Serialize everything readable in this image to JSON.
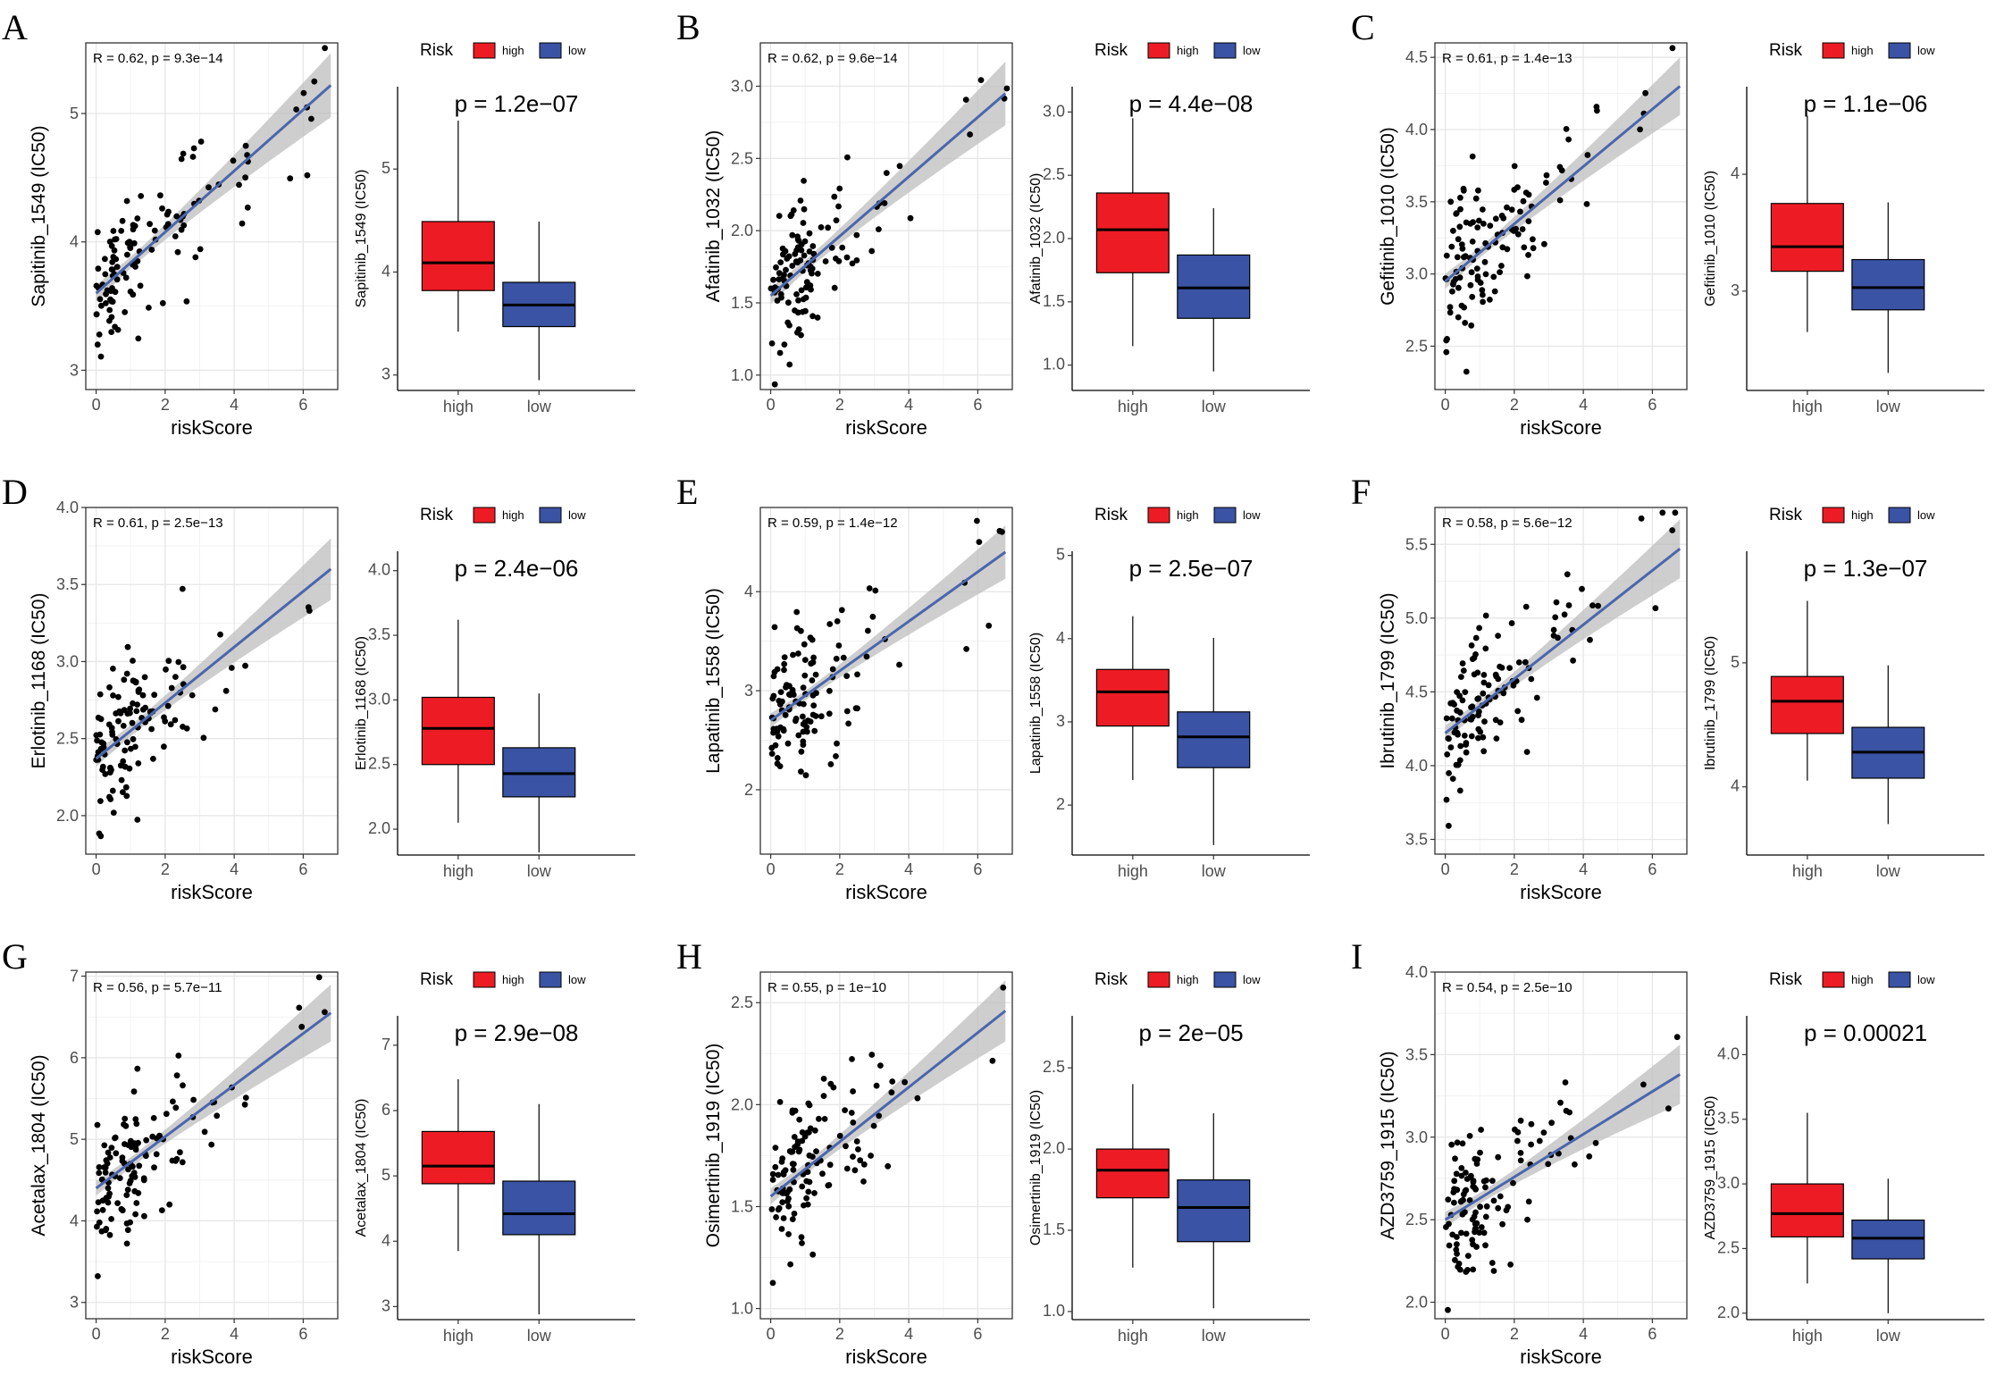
{
  "colors": {
    "high": "#ED1C24",
    "low": "#3A53A4",
    "regression_line": "#4A66AC",
    "confidence_band": "#BEBEBE",
    "points": "#000000"
  },
  "chart_data": [
    {
      "panel": "A",
      "type": "scatter+box",
      "scatter": {
        "xlabel": "riskScore",
        "ylabel": "Sapitinib_1549 (IC50)",
        "stat_label": "R = 0.62, p = 9.3e−14",
        "xlim": [
          -0.3,
          7
        ],
        "ylim": [
          2.85,
          5.55
        ],
        "xticks": [
          0,
          2,
          4,
          6
        ],
        "yticks": [
          3,
          4,
          5
        ],
        "fit": {
          "x0": 0,
          "y0": 3.6,
          "x1": 6.8,
          "y1": 5.22
        },
        "band": 0.25
      },
      "box": {
        "ylabel": "Sapitinib_1549 (IC50)",
        "pvalue_label": "p = 1.2e−07",
        "categories": [
          "high",
          "low"
        ],
        "legend_title": "Risk",
        "ylim": [
          2.85,
          5.8
        ],
        "yticks": [
          3,
          4,
          5
        ],
        "boxes": [
          {
            "group": "high",
            "min": 3.42,
            "q1": 3.82,
            "median": 4.09,
            "q3": 4.49,
            "max": 5.47
          },
          {
            "group": "low",
            "min": 2.95,
            "q1": 3.47,
            "median": 3.68,
            "q3": 3.9,
            "max": 4.49
          }
        ]
      }
    },
    {
      "panel": "B",
      "type": "scatter+box",
      "scatter": {
        "xlabel": "riskScore",
        "ylabel": "Afatinib_1032 (IC50)",
        "stat_label": "R = 0.62, p = 9.6e−14",
        "xlim": [
          -0.3,
          7
        ],
        "ylim": [
          0.9,
          3.3
        ],
        "xticks": [
          0,
          2,
          4,
          6
        ],
        "yticks": [
          1.0,
          1.5,
          2.0,
          2.5,
          3.0
        ],
        "fit": {
          "x0": 0,
          "y0": 1.55,
          "x1": 6.8,
          "y1": 2.95
        },
        "band": 0.22
      },
      "box": {
        "ylabel": "Afatinib_1032 (IC50)",
        "pvalue_label": "p = 4.4e−08",
        "categories": [
          "high",
          "low"
        ],
        "legend_title": "Risk",
        "ylim": [
          0.8,
          3.2
        ],
        "yticks": [
          1.0,
          1.5,
          2.0,
          2.5,
          3.0
        ],
        "boxes": [
          {
            "group": "high",
            "min": 1.15,
            "q1": 1.73,
            "median": 2.07,
            "q3": 2.36,
            "max": 2.95
          },
          {
            "group": "low",
            "min": 0.95,
            "q1": 1.37,
            "median": 1.61,
            "q3": 1.87,
            "max": 2.24
          }
        ]
      }
    },
    {
      "panel": "C",
      "type": "scatter+box",
      "scatter": {
        "xlabel": "riskScore",
        "ylabel": "Gefitinib_1010 (IC50)",
        "stat_label": "R = 0.61, p = 1.4e−13",
        "xlim": [
          -0.3,
          7
        ],
        "ylim": [
          2.2,
          4.6
        ],
        "xticks": [
          0,
          2,
          4,
          6
        ],
        "yticks": [
          2.5,
          3.0,
          3.5,
          4.0,
          4.5
        ],
        "fit": {
          "x0": 0,
          "y0": 2.95,
          "x1": 6.8,
          "y1": 4.3
        },
        "band": 0.2
      },
      "box": {
        "ylabel": "Gefitinib_1010 (IC50)",
        "pvalue_label": "p = 1.1e−06",
        "categories": [
          "high",
          "low"
        ],
        "legend_title": "Risk",
        "ylim": [
          2.15,
          4.75
        ],
        "yticks": [
          3,
          4
        ],
        "boxes": [
          {
            "group": "high",
            "min": 2.65,
            "q1": 3.17,
            "median": 3.38,
            "q3": 3.75,
            "max": 4.5
          },
          {
            "group": "low",
            "min": 2.3,
            "q1": 2.84,
            "median": 3.03,
            "q3": 3.27,
            "max": 3.76
          }
        ]
      }
    },
    {
      "panel": "D",
      "type": "scatter+box",
      "scatter": {
        "xlabel": "riskScore",
        "ylabel": "Erlotinib_1168 (IC50)",
        "stat_label": "R = 0.61, p = 2.5e−13",
        "xlim": [
          -0.3,
          7
        ],
        "ylim": [
          1.75,
          4.0
        ],
        "xticks": [
          0,
          2,
          4,
          6
        ],
        "yticks": [
          2.0,
          2.5,
          3.0,
          3.5,
          4.0
        ],
        "fit": {
          "x0": 0,
          "y0": 2.37,
          "x1": 6.8,
          "y1": 3.6
        },
        "band": 0.2
      },
      "box": {
        "ylabel": "Erlotinib_1168 (IC50)",
        "pvalue_label": "p = 2.4e−06",
        "categories": [
          "high",
          "low"
        ],
        "legend_title": "Risk",
        "ylim": [
          1.8,
          4.15
        ],
        "yticks": [
          2.0,
          2.5,
          3.0,
          3.5,
          4.0
        ],
        "boxes": [
          {
            "group": "high",
            "min": 2.05,
            "q1": 2.5,
            "median": 2.78,
            "q3": 3.02,
            "max": 3.62
          },
          {
            "group": "low",
            "min": 1.82,
            "q1": 2.25,
            "median": 2.43,
            "q3": 2.63,
            "max": 3.05
          }
        ]
      }
    },
    {
      "panel": "E",
      "type": "scatter+box",
      "scatter": {
        "xlabel": "riskScore",
        "ylabel": "Lapatinib_1558 (IC50)",
        "stat_label": "R = 0.59, p = 1.4e−12",
        "xlim": [
          -0.3,
          7
        ],
        "ylim": [
          1.35,
          4.85
        ],
        "xticks": [
          0,
          2,
          4,
          6
        ],
        "yticks": [
          2,
          3,
          4
        ],
        "fit": {
          "x0": 0,
          "y0": 2.7,
          "x1": 6.8,
          "y1": 4.4
        },
        "band": 0.27
      },
      "box": {
        "ylabel": "Lapatinib_1558 (IC50)",
        "pvalue_label": "p = 2.5e−07",
        "categories": [
          "high",
          "low"
        ],
        "legend_title": "Risk",
        "ylim": [
          1.4,
          5.05
        ],
        "yticks": [
          2,
          3,
          4,
          5
        ],
        "boxes": [
          {
            "group": "high",
            "min": 2.3,
            "q1": 2.95,
            "median": 3.36,
            "q3": 3.63,
            "max": 4.27
          },
          {
            "group": "low",
            "min": 1.52,
            "q1": 2.45,
            "median": 2.82,
            "q3": 3.12,
            "max": 4.01
          }
        ]
      }
    },
    {
      "panel": "F",
      "type": "scatter+box",
      "scatter": {
        "xlabel": "riskScore",
        "ylabel": "Ibrutinib_1799 (IC50)",
        "stat_label": "R = 0.58, p = 5.6e−12",
        "xlim": [
          -0.3,
          7
        ],
        "ylim": [
          3.4,
          5.75
        ],
        "xticks": [
          0,
          2,
          4,
          6
        ],
        "yticks": [
          3.5,
          4.0,
          4.5,
          5.0,
          5.5
        ],
        "fit": {
          "x0": 0,
          "y0": 4.22,
          "x1": 6.8,
          "y1": 5.47
        },
        "band": 0.2
      },
      "box": {
        "ylabel": "Ibrutinib_1799 (IC50)",
        "pvalue_label": "p = 1.3e−07",
        "categories": [
          "high",
          "low"
        ],
        "legend_title": "Risk",
        "ylim": [
          3.45,
          5.9
        ],
        "yticks": [
          4,
          5
        ],
        "boxes": [
          {
            "group": "high",
            "min": 4.05,
            "q1": 4.43,
            "median": 4.69,
            "q3": 4.89,
            "max": 5.5
          },
          {
            "group": "low",
            "min": 3.7,
            "q1": 4.07,
            "median": 4.28,
            "q3": 4.48,
            "max": 4.98
          }
        ]
      }
    },
    {
      "panel": "G",
      "type": "scatter+box",
      "scatter": {
        "xlabel": "riskScore",
        "ylabel": "Acetalax_1804 (IC50)",
        "stat_label": "R = 0.56, p = 5.7e−11",
        "xlim": [
          -0.3,
          7
        ],
        "ylim": [
          2.8,
          7.05
        ],
        "xticks": [
          0,
          2,
          4,
          6
        ],
        "yticks": [
          3,
          4,
          5,
          6,
          7
        ],
        "fit": {
          "x0": 0,
          "y0": 4.4,
          "x1": 6.8,
          "y1": 6.55
        },
        "band": 0.35
      },
      "box": {
        "ylabel": "Acetalax_1804 (IC50)",
        "pvalue_label": "p = 2.9e−08",
        "categories": [
          "high",
          "low"
        ],
        "legend_title": "Risk",
        "ylim": [
          2.8,
          7.45
        ],
        "yticks": [
          3,
          4,
          5,
          6,
          7
        ],
        "boxes": [
          {
            "group": "high",
            "min": 3.85,
            "q1": 4.88,
            "median": 5.15,
            "q3": 5.68,
            "max": 6.48
          },
          {
            "group": "low",
            "min": 2.88,
            "q1": 4.1,
            "median": 4.42,
            "q3": 4.92,
            "max": 6.1
          }
        ]
      }
    },
    {
      "panel": "H",
      "type": "scatter+box",
      "scatter": {
        "xlabel": "riskScore",
        "ylabel": "Osimertinib_1919 (IC50)",
        "stat_label": "R = 0.55, p = 1e−10",
        "xlim": [
          -0.3,
          7
        ],
        "ylim": [
          0.95,
          2.65
        ],
        "xticks": [
          0,
          2,
          4,
          6
        ],
        "yticks": [
          1.0,
          1.5,
          2.0,
          2.5
        ],
        "fit": {
          "x0": 0,
          "y0": 1.55,
          "x1": 6.8,
          "y1": 2.46
        },
        "band": 0.15
      },
      "box": {
        "ylabel": "Osimertinib_1919 (IC50)",
        "pvalue_label": "p = 2e−05",
        "categories": [
          "high",
          "low"
        ],
        "legend_title": "Risk",
        "ylim": [
          0.95,
          2.82
        ],
        "yticks": [
          1.0,
          1.5,
          2.0,
          2.5
        ],
        "boxes": [
          {
            "group": "high",
            "min": 1.27,
            "q1": 1.7,
            "median": 1.87,
            "q3": 2.0,
            "max": 2.4
          },
          {
            "group": "low",
            "min": 1.02,
            "q1": 1.43,
            "median": 1.64,
            "q3": 1.81,
            "max": 2.22
          }
        ]
      }
    },
    {
      "panel": "I",
      "type": "scatter+box",
      "scatter": {
        "xlabel": "riskScore",
        "ylabel": "AZD3759_1915 (IC50)",
        "stat_label": "R = 0.54, p = 2.5e−10",
        "xlim": [
          -0.3,
          7
        ],
        "ylim": [
          1.9,
          4.0
        ],
        "xticks": [
          0,
          2,
          4,
          6
        ],
        "yticks": [
          2.0,
          2.5,
          3.0,
          3.5,
          4.0
        ],
        "fit": {
          "x0": 0,
          "y0": 2.5,
          "x1": 6.8,
          "y1": 3.38
        },
        "band": 0.18
      },
      "box": {
        "ylabel": "AZD3759_1915 (IC50)",
        "pvalue_label": "p = 0.00021",
        "categories": [
          "high",
          "low"
        ],
        "legend_title": "Risk",
        "ylim": [
          1.95,
          4.3
        ],
        "yticks": [
          2.0,
          2.5,
          3.0,
          3.5,
          4.0
        ],
        "boxes": [
          {
            "group": "high",
            "min": 2.23,
            "q1": 2.59,
            "median": 2.77,
            "q3": 3.0,
            "max": 3.55
          },
          {
            "group": "low",
            "min": 2.0,
            "q1": 2.42,
            "median": 2.58,
            "q3": 2.72,
            "max": 3.04
          }
        ]
      }
    }
  ]
}
